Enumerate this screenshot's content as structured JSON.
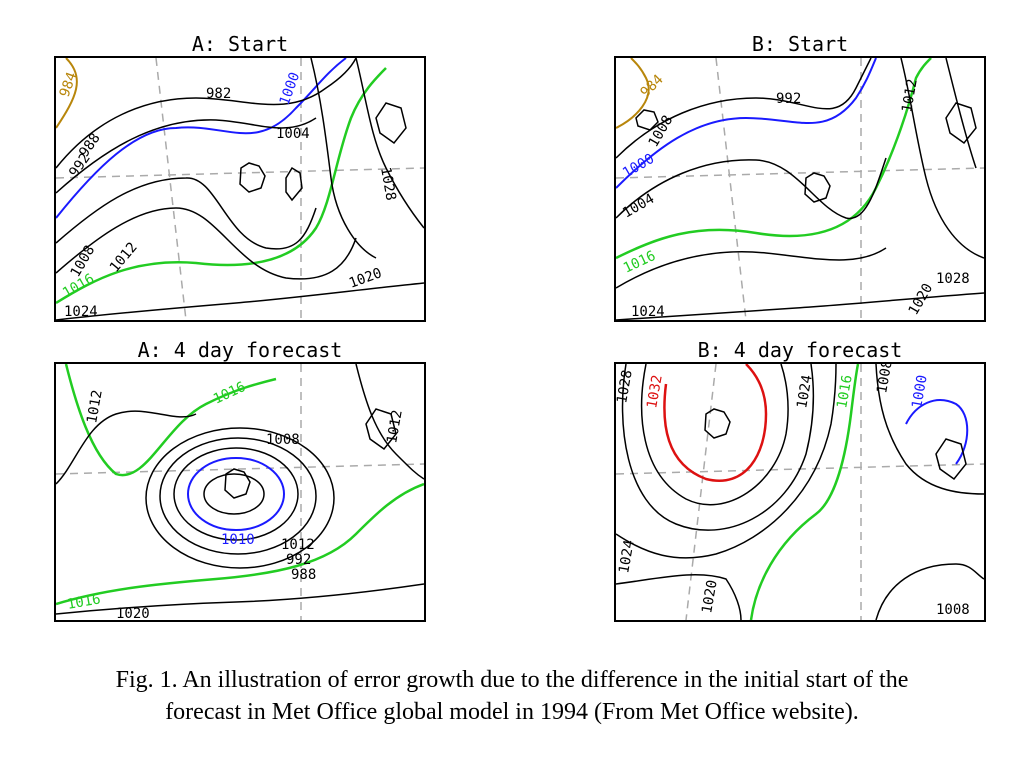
{
  "panels": [
    {
      "title": "A: Start",
      "labels": [
        "984",
        "982",
        "1000",
        "1008",
        "1012",
        "1016",
        "1020",
        "1024",
        "992",
        "988",
        "1004",
        "1028"
      ]
    },
    {
      "title": "B: Start",
      "labels": [
        "984",
        "992",
        "1000",
        "1004",
        "1008",
        "1016",
        "1024",
        "1012",
        "1028",
        "1020"
      ]
    },
    {
      "title": "A: 4 day forecast",
      "labels": [
        "1016",
        "1012",
        "1020",
        "1016",
        "1008",
        "1012",
        "992",
        "988",
        "1010",
        "1012"
      ]
    },
    {
      "title": "B: 4 day forecast",
      "labels": [
        "1028",
        "1032",
        "1024",
        "1016",
        "1008",
        "1000",
        "1024",
        "1020",
        "1008"
      ]
    }
  ],
  "caption": {
    "line1": "Fig. 1. An illustration of error growth due to the difference in the initial start of the",
    "line2": "forecast in Met Office global model in 1994 (From Met Office website)."
  },
  "colors": {
    "isobar": "#000000",
    "iso_low": "#b8860b",
    "iso_blue": "#1a1aff",
    "iso_green": "#22cc22",
    "iso_red": "#dd1111",
    "grid": "#aaaaaa"
  }
}
